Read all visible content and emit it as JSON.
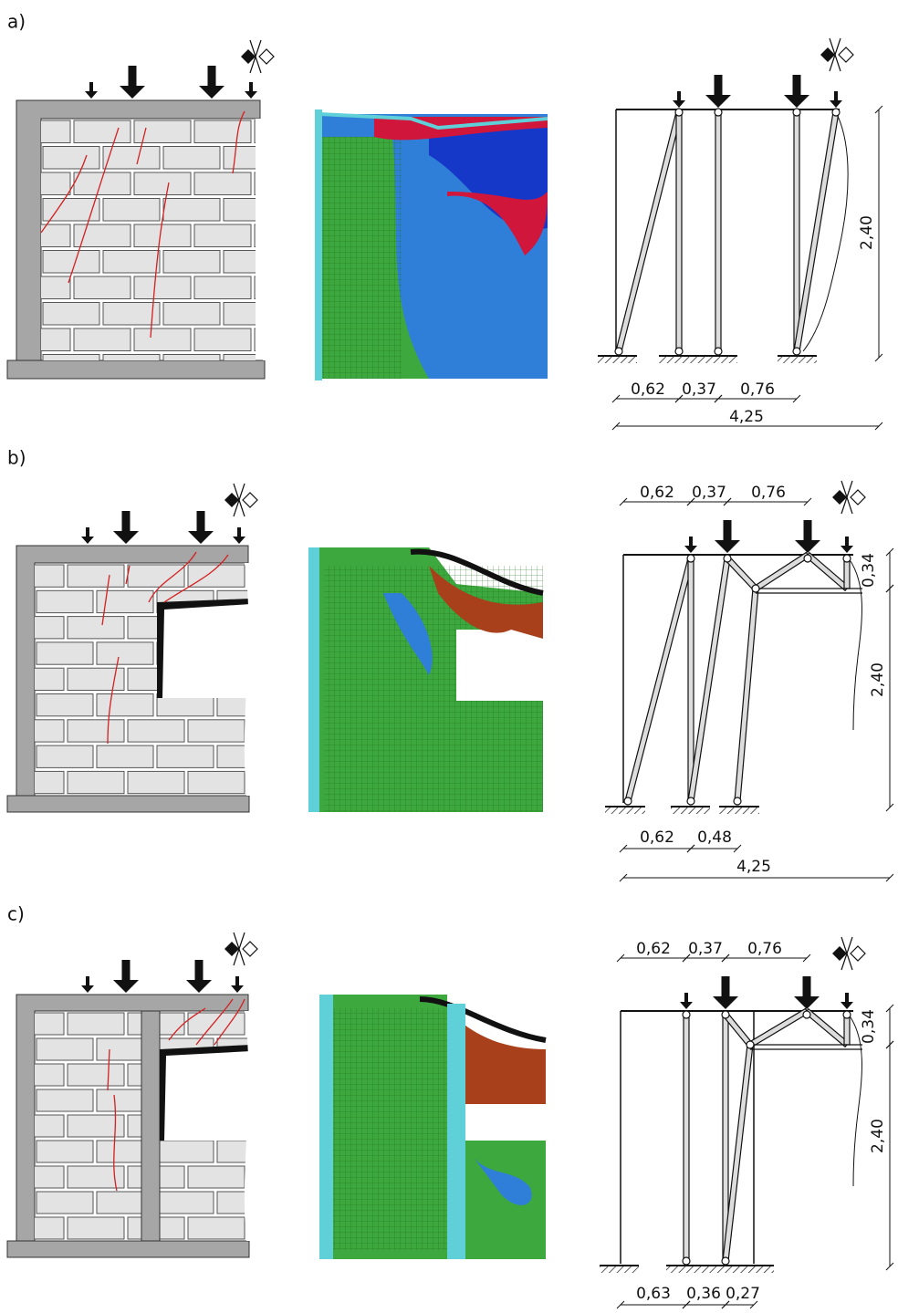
{
  "panels": [
    {
      "label": "a)",
      "vertical_dims": [
        "2,40"
      ],
      "bottom_dims": [
        "0,62",
        "0,37",
        "0,76"
      ],
      "total": "4,25"
    },
    {
      "label": "b)",
      "top_dims": [
        "0,62",
        "0,37",
        "0,76"
      ],
      "vertical_dims": [
        "0,34",
        "2,40"
      ],
      "bottom_dims": [
        "0,62",
        "0,48"
      ],
      "total": "4,25"
    },
    {
      "label": "c)",
      "top_dims": [
        "0,62",
        "0,37",
        "0,76"
      ],
      "vertical_dims": [
        "0,34",
        "2,40"
      ],
      "bottom_dims": [
        "0,63",
        "0,36",
        "0,27"
      ]
    }
  ]
}
